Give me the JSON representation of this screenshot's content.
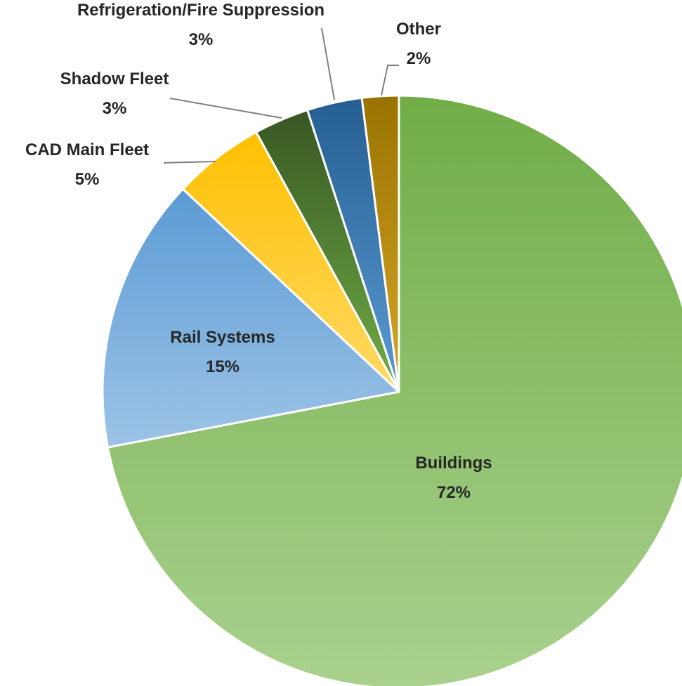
{
  "chart_data": {
    "type": "pie",
    "title": "",
    "slices": [
      {
        "label": "Buildings",
        "value": 72,
        "pct_label": "72%",
        "colors": [
          "#70ad47",
          "#a9d18e"
        ]
      },
      {
        "label": "Rail Systems",
        "value": 15,
        "pct_label": "15%",
        "colors": [
          "#5b9bd5",
          "#9dc3e6"
        ]
      },
      {
        "label": "CAD Main Fleet",
        "value": 5,
        "pct_label": "5%",
        "colors": [
          "#ffc000",
          "#ffd966"
        ]
      },
      {
        "label": "Shadow Fleet",
        "value": 3,
        "pct_label": "3%",
        "colors": [
          "#385723",
          "#70ad47"
        ]
      },
      {
        "label": "Refrigeration/Fire Suppression",
        "value": 3,
        "pct_label": "3%",
        "colors": [
          "#255e91",
          "#5b9bd5"
        ]
      },
      {
        "label": "Other",
        "value": 2,
        "pct_label": "2%",
        "colors": [
          "#997300",
          "#d6a62b"
        ]
      }
    ],
    "legend": "none",
    "data_labels": "category name and percentage"
  }
}
